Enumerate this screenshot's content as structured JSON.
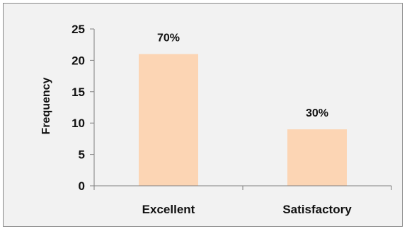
{
  "chart_data": {
    "type": "bar",
    "categories": [
      "Excellent",
      "Satisfactory"
    ],
    "values": [
      21,
      9
    ],
    "data_labels": [
      "70%",
      "30%"
    ],
    "title": "",
    "xlabel": "",
    "ylabel": "Frequency",
    "ylim": [
      0,
      25
    ],
    "yticks": [
      0,
      5,
      10,
      15,
      20,
      25
    ],
    "grid": false,
    "legend": "none",
    "colors": {
      "bar": "#fcd5b4",
      "background": "#f2f2f2",
      "axis": "#808080"
    }
  }
}
